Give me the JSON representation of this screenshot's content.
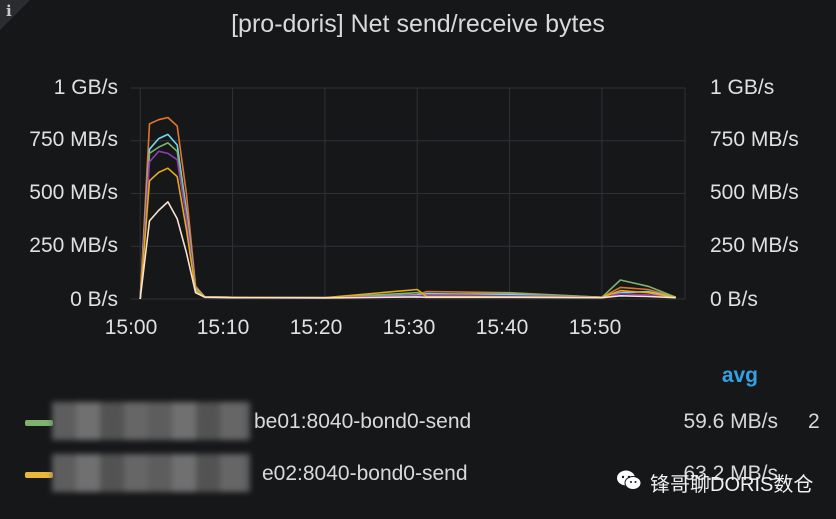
{
  "panel": {
    "title": "[pro-doris] Net send/receive bytes",
    "info_glyph": "i"
  },
  "chart_data": {
    "type": "line",
    "title": "[pro-doris] Net send/receive bytes",
    "y_unit": "MB/s",
    "ylim": [
      0,
      1000
    ],
    "y_ticks": [
      "0 B/s",
      "250 MB/s",
      "500 MB/s",
      "750 MB/s",
      "1 GB/s"
    ],
    "x_ticks": [
      "15:00",
      "15:10",
      "15:20",
      "15:30",
      "15:40",
      "15:50"
    ],
    "xlim": [
      "14:59",
      "15:59"
    ],
    "grid": true,
    "legend_placement": "bottom",
    "series": [
      {
        "color": "#e0752d",
        "x": [
          "15:00",
          "15:01",
          "15:02",
          "15:03",
          "15:04",
          "15:05",
          "15:06",
          "15:07",
          "15:10",
          "15:20",
          "15:30",
          "15:31",
          "15:40",
          "15:50",
          "15:52",
          "15:55",
          "15:58"
        ],
        "values": [
          0,
          830,
          850,
          860,
          820,
          500,
          60,
          10,
          8,
          6,
          20,
          35,
          30,
          8,
          55,
          45,
          8
        ]
      },
      {
        "color": "#70dbed",
        "x": [
          "15:00",
          "15:01",
          "15:02",
          "15:03",
          "15:04",
          "15:05",
          "15:06",
          "15:07",
          "15:10",
          "15:20",
          "15:30",
          "15:31",
          "15:40",
          "15:50",
          "15:52",
          "15:55",
          "15:58"
        ],
        "values": [
          0,
          710,
          760,
          780,
          730,
          420,
          50,
          10,
          8,
          6,
          18,
          25,
          22,
          8,
          30,
          35,
          8
        ]
      },
      {
        "color": "#7eb26d",
        "x": [
          "15:00",
          "15:01",
          "15:02",
          "15:03",
          "15:04",
          "15:05",
          "15:06",
          "15:07",
          "15:10",
          "15:20",
          "15:30",
          "15:31",
          "15:40",
          "15:50",
          "15:52",
          "15:55",
          "15:58"
        ],
        "values": [
          0,
          690,
          720,
          740,
          700,
          400,
          45,
          10,
          8,
          6,
          30,
          20,
          28,
          8,
          90,
          60,
          8
        ]
      },
      {
        "color": "#8f3bb8",
        "x": [
          "15:00",
          "15:01",
          "15:02",
          "15:03",
          "15:04",
          "15:05",
          "15:06",
          "15:07",
          "15:10",
          "15:20",
          "15:30",
          "15:31",
          "15:40",
          "15:50",
          "15:52",
          "15:55",
          "15:58"
        ],
        "values": [
          0,
          650,
          700,
          690,
          660,
          380,
          40,
          10,
          8,
          6,
          15,
          18,
          15,
          8,
          25,
          20,
          8
        ]
      },
      {
        "color": "#e5ac0e",
        "x": [
          "15:00",
          "15:01",
          "15:02",
          "15:03",
          "15:04",
          "15:05",
          "15:06",
          "15:07",
          "15:10",
          "15:20",
          "15:30",
          "15:31",
          "15:40",
          "15:50",
          "15:52",
          "15:55",
          "15:58"
        ],
        "values": [
          0,
          560,
          600,
          620,
          580,
          330,
          40,
          10,
          8,
          6,
          45,
          12,
          10,
          8,
          40,
          30,
          8
        ]
      },
      {
        "color": "#f9e2d2",
        "x": [
          "15:00",
          "15:01",
          "15:02",
          "15:03",
          "15:04",
          "15:05",
          "15:06",
          "15:07",
          "15:10",
          "15:20",
          "15:30",
          "15:31",
          "15:40",
          "15:50",
          "15:52",
          "15:55",
          "15:58"
        ],
        "values": [
          0,
          370,
          420,
          460,
          380,
          220,
          30,
          8,
          6,
          5,
          10,
          8,
          8,
          6,
          15,
          12,
          6
        ]
      }
    ]
  },
  "legend": {
    "avg_header": "avg",
    "rows": [
      {
        "swatch_color": "#7eb26d",
        "name": "be01:8040-bond0-send",
        "avg": "59.6 MB/s",
        "clipped": "2"
      },
      {
        "swatch_color": "#eab839",
        "name": "e02:8040-bond0-send",
        "avg": "63.2 MB/s",
        "clipped": ""
      }
    ]
  },
  "watermark": {
    "text": "锋哥聊DORIS数仓",
    "icon": "wechat-icon"
  }
}
